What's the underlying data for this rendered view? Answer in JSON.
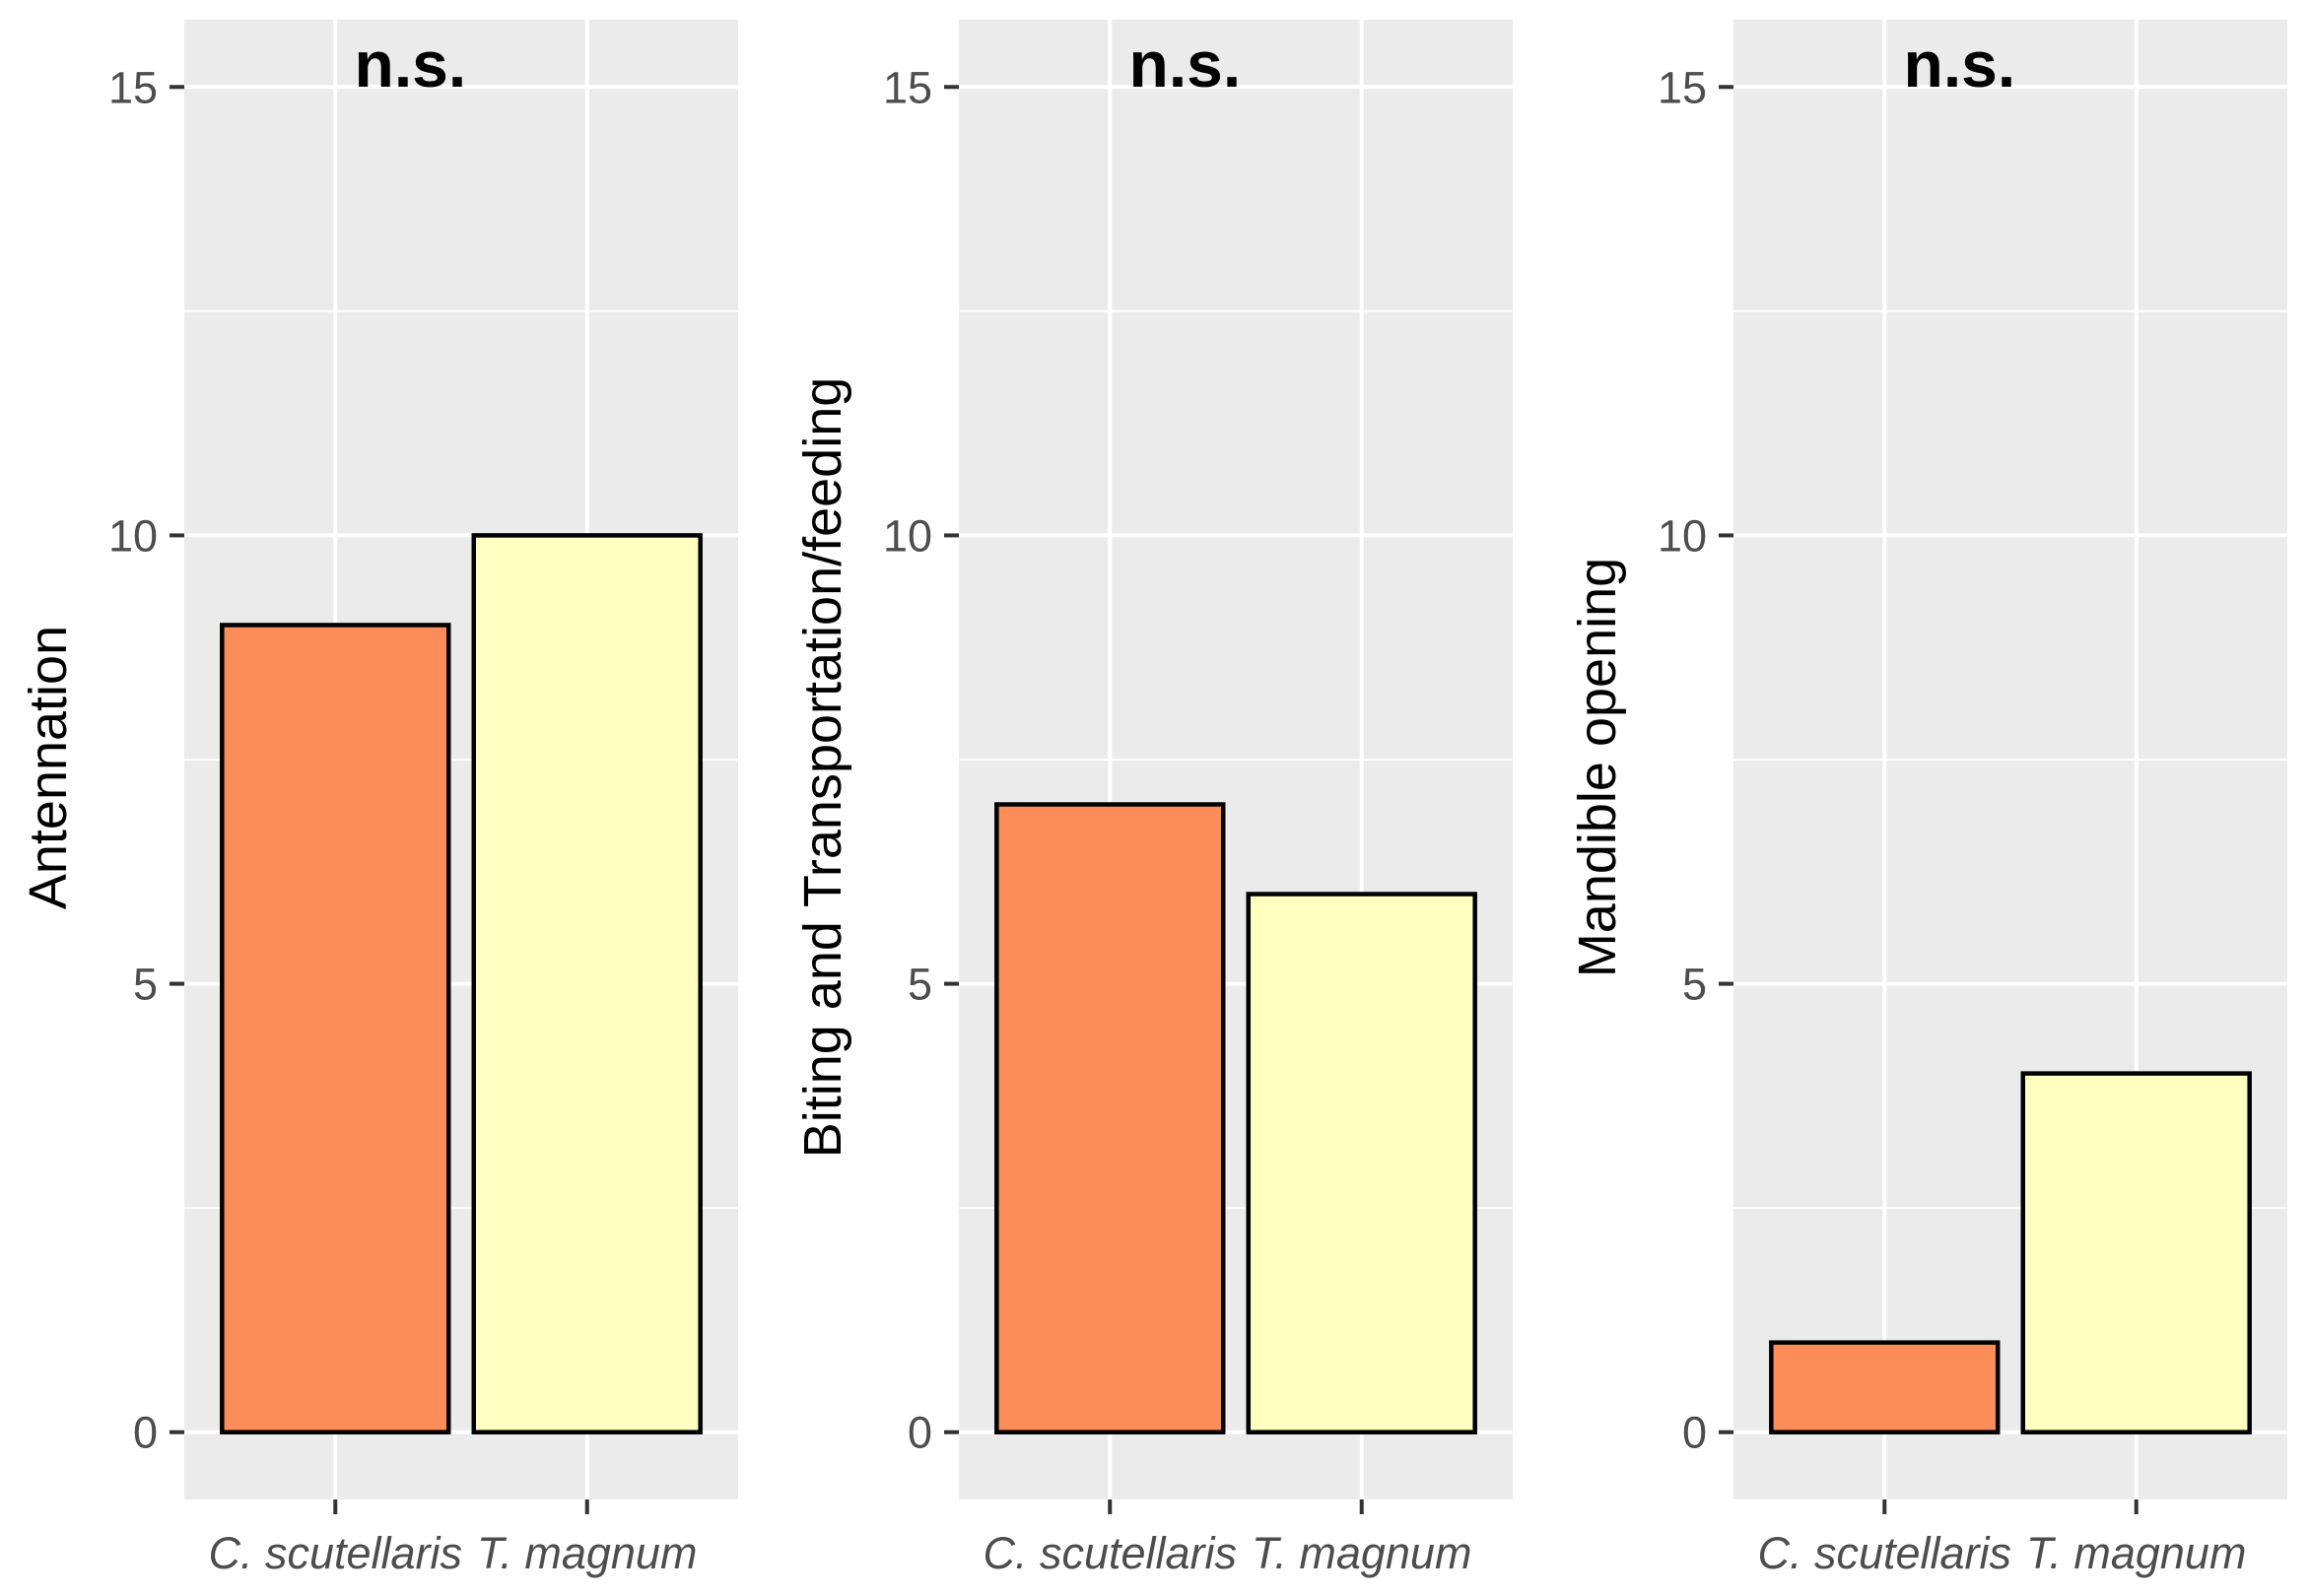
{
  "colors": {
    "panel_background": "#ebebeb",
    "grid_line": "#ffffff",
    "bar_outline": "#000000",
    "tick_text": "#4d4d4d",
    "series_colors": [
      "#fc8d59",
      "#ffffbf"
    ]
  },
  "chart_data": [
    {
      "type": "bar",
      "categories": [
        "C. scutellaris",
        "T. magnum"
      ],
      "values": [
        9,
        10
      ],
      "ylabel": "Antennation",
      "xlabel": "",
      "annotation": "n.s.",
      "ylim": [
        -0.75,
        15.75
      ],
      "yticks": [
        "0",
        "5",
        "10",
        "15"
      ],
      "grid": true
    },
    {
      "type": "bar",
      "categories": [
        "C. scutellaris",
        "T. magnum"
      ],
      "values": [
        7,
        6
      ],
      "ylabel": "Biting and Transportation/feeding",
      "xlabel": "",
      "annotation": "n.s.",
      "ylim": [
        -0.75,
        15.75
      ],
      "yticks": [
        "0",
        "5",
        "10",
        "15"
      ],
      "grid": true
    },
    {
      "type": "bar",
      "categories": [
        "C. scutellaris",
        "T. magnum"
      ],
      "values": [
        1,
        4
      ],
      "ylabel": "Mandible opening",
      "xlabel": "",
      "annotation": "n.s.",
      "ylim": [
        -0.75,
        15.75
      ],
      "yticks": [
        "0",
        "5",
        "10",
        "15"
      ],
      "grid": true
    }
  ]
}
